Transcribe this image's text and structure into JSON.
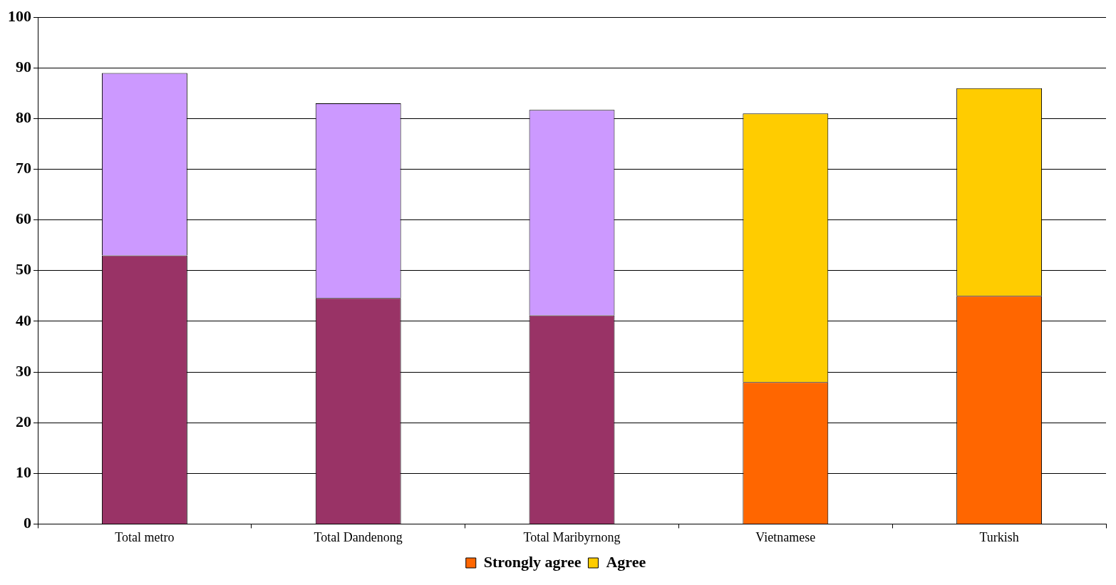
{
  "chart_data": {
    "type": "bar",
    "stacked": true,
    "categories": [
      "Total metro",
      "Total Dandenong",
      "Total Maribyrnong",
      "Vietnamese",
      "Turkish"
    ],
    "series": [
      {
        "name": "Strongly agree",
        "color": "#ff6600",
        "colors": [
          "#993366",
          "#993366",
          "#993366",
          "#ff6600",
          "#ff6600"
        ],
        "values": [
          53,
          44.6,
          41.2,
          28,
          45
        ]
      },
      {
        "name": "Agree",
        "color": "#ffcc00",
        "colors": [
          "#cc99ff",
          "#cc99ff",
          "#cc99ff",
          "#ffcc00",
          "#ffcc00"
        ],
        "values": [
          36,
          38.4,
          40.5,
          53,
          41
        ]
      }
    ],
    "ylim": [
      0,
      100
    ],
    "yticks": [
      0,
      10,
      20,
      30,
      40,
      50,
      60,
      70,
      80,
      90,
      100
    ],
    "grid": "y",
    "legend": "bottom"
  }
}
